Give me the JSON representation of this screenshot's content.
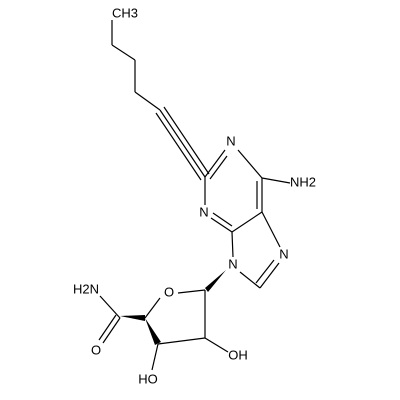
{
  "molecule": {
    "atoms": [
      {
        "label": "CH3"
      },
      {
        "label": "N"
      },
      {
        "label": "NH2"
      },
      {
        "label": "N"
      },
      {
        "label": "N"
      },
      {
        "label": "N"
      },
      {
        "label": "O"
      },
      {
        "label": "H2N"
      },
      {
        "label": "O"
      },
      {
        "label": "OH"
      },
      {
        "label": "HO"
      }
    ]
  }
}
